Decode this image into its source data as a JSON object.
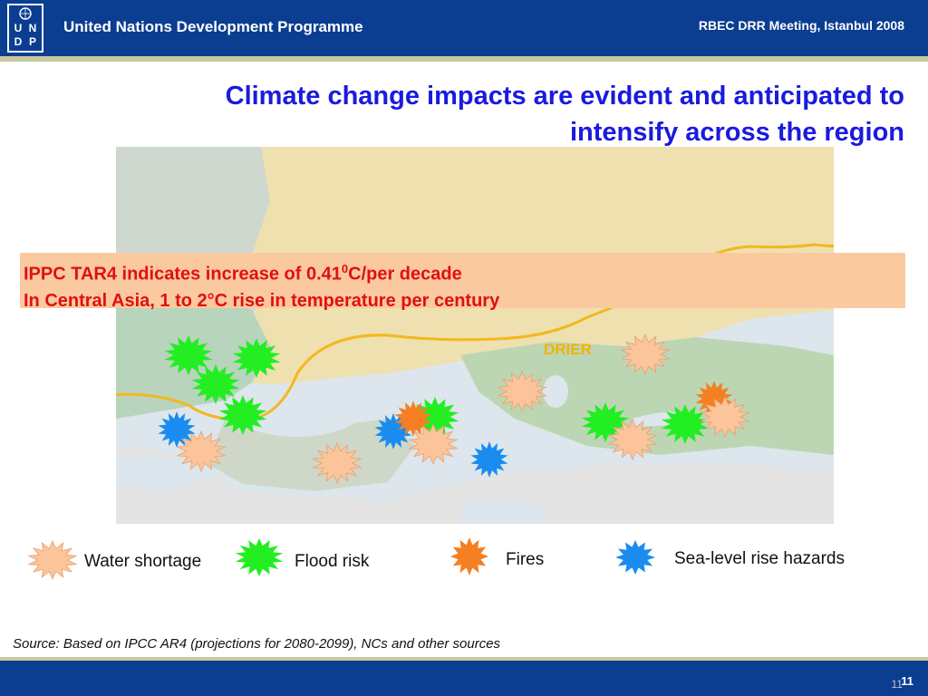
{
  "header": {
    "org_name": "United Nations Development Programme",
    "meeting": "RBEC DRR Meeting, Istanbul 2008",
    "logo_letters": [
      "U",
      "N",
      "D",
      "P"
    ]
  },
  "slide": {
    "title_line1": "Climate change impacts are evident and anticipated to",
    "title_line2": "intensify across the region",
    "callout": {
      "line1_prefix": "IPPC TAR4 indicates increase of 0.41",
      "line1_sup": "0",
      "line1_suffix": "C/per decade",
      "line2": "In Central Asia, 1 to 2°C rise in temperature per century"
    },
    "map_label": "DRIER",
    "legend": [
      {
        "label": "Water shortage",
        "color": "#fbc49a",
        "icon": "water-shortage-burst-icon"
      },
      {
        "label": "Flood risk",
        "color": "#22ee22",
        "icon": "flood-risk-burst-icon"
      },
      {
        "label": "Fires",
        "color": "#f57f22",
        "icon": "fire-burst-icon"
      },
      {
        "label": "Sea-level rise hazards",
        "color": "#1a8cf0",
        "icon": "sea-level-burst-icon"
      }
    ],
    "source": "Source: Based on IPCC AR4 (projections for 2080-2099), NCs and other sources"
  },
  "footer": {
    "page_number": "11",
    "page_number_ghost": "11"
  },
  "colors": {
    "brand_blue": "#0b3d91",
    "title_blue": "#1a1adf",
    "callout_bg": "#fbc9a0",
    "callout_text": "#e01010",
    "drier_text": "#f3b300"
  }
}
